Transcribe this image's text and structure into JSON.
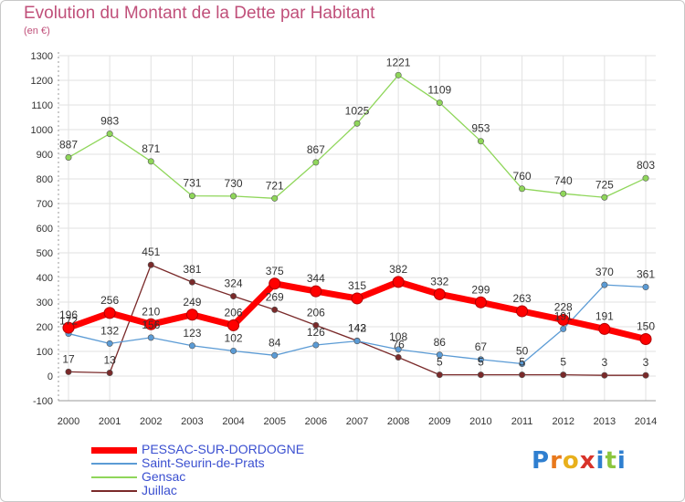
{
  "chart_data": {
    "type": "line",
    "title": "Evolution du Montant de la Dette par Habitant",
    "subtitle": "(en €)",
    "x": [
      "2000",
      "2001",
      "2002",
      "2003",
      "2004",
      "2005",
      "2006",
      "2007",
      "2008",
      "2009",
      "2010",
      "2011",
      "2012",
      "2013",
      "2014"
    ],
    "ylim": [
      -100,
      1300
    ],
    "yticks": [
      -100,
      0,
      100,
      200,
      300,
      400,
      500,
      600,
      700,
      800,
      900,
      1000,
      1100,
      1200,
      1300
    ],
    "grid": true,
    "legend_position": "bottom-left",
    "series": [
      {
        "name": "PESSAC-SUR-DORDOGNE",
        "color": "#ff0000",
        "values": [
          196,
          256,
          210,
          249,
          206,
          375,
          344,
          315,
          382,
          332,
          299,
          263,
          228,
          191,
          150
        ],
        "labels": [
          "196",
          "256",
          "210",
          "249",
          "206",
          "375",
          "344",
          "315",
          "382",
          "332",
          "299",
          "263",
          "228",
          "191",
          "150"
        ]
      },
      {
        "name": "Saint-Seurin-de-Prats",
        "color": "#5b9bd5",
        "values": [
          172,
          132,
          156,
          123,
          102,
          84,
          126,
          142,
          108,
          86,
          67,
          50,
          191,
          370,
          361
        ],
        "labels": [
          "172",
          "132",
          "156",
          "123",
          "102",
          "84",
          "126",
          "142",
          "108",
          "86",
          "67",
          "50",
          "191",
          "370",
          "361"
        ]
      },
      {
        "name": "Gensac",
        "color": "#8fd65a",
        "values": [
          887,
          983,
          871,
          731,
          730,
          721,
          867,
          1025,
          1221,
          1109,
          953,
          760,
          740,
          725,
          803
        ],
        "labels": [
          "887",
          "983",
          "871",
          "731",
          "730",
          "721",
          "867",
          "1025",
          "1221",
          "1109",
          "953",
          "760",
          "740",
          "725",
          "803"
        ]
      },
      {
        "name": "Juillac",
        "color": "#7a2a2a",
        "values": [
          17,
          13,
          451,
          381,
          324,
          269,
          206,
          143,
          76,
          5,
          5,
          5,
          5,
          3,
          3
        ],
        "labels": [
          "17",
          "13",
          "451",
          "381",
          "324",
          "269",
          "206",
          "143",
          "76",
          "5",
          "5",
          "5",
          "5",
          "3",
          "3"
        ]
      }
    ]
  },
  "logo": {
    "text": "Proxiti",
    "letters": [
      "P",
      "r",
      "o",
      "x",
      "i",
      "t",
      "i"
    ],
    "colors": [
      "#2f7fd0",
      "#e8791c",
      "#e8b01c",
      "#d8332a",
      "#2f7fd0",
      "#8cc63f",
      "#2f7fd0"
    ]
  }
}
